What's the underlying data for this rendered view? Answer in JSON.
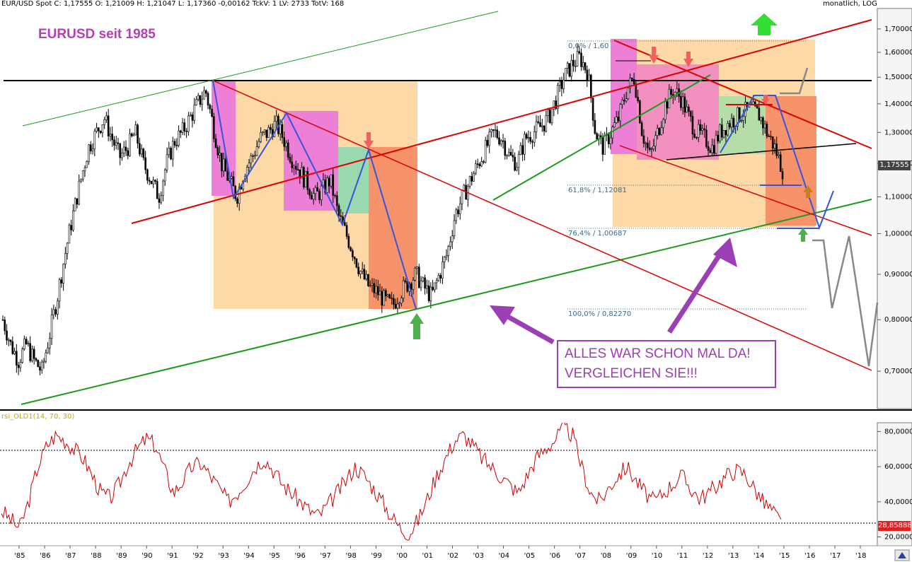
{
  "header": {
    "info": "EUR/USD Spot C: 1,17555 O: 1,21009 H: 1,21047 L: 1,17360 -0,00162 TckV: 1 LV: 2733 TotV: 168",
    "mode": "monatlich, LOG"
  },
  "chart_title": "EURUSD seit 1985",
  "annotation": {
    "line1": "ALLES WAR SCHON MAL DA!",
    "line2": "VERGLEICHEN SIE!!!"
  },
  "fib_labels": [
    "0,0% / 1,60",
    "61,8% / 1,12081",
    "76,4% / 1,00687",
    "100,0% / 0,82270"
  ],
  "current_price_label": "1,17555",
  "indicator": {
    "name": "rsi_OLD1(14, 70, 30)",
    "current_label": "28,85888"
  },
  "colors": {
    "candle": "#000000",
    "rsi": "#d00000",
    "trend_red": "#e00000",
    "trend_green": "#1a9a1a",
    "wave_blue": "#3355dd",
    "projection_gray": "#888888",
    "annotation_purple": "#9b3fb5"
  },
  "chart_data": [
    {
      "type": "line",
      "series": [
        {
          "values": [
            0.8,
            0.75,
            0.72,
            0.75,
            0.72,
            0.7,
            0.77,
            0.85,
            0.95,
            1.05,
            1.15,
            1.25,
            1.3,
            1.35,
            1.28,
            1.22,
            1.25,
            1.3,
            1.2,
            1.15,
            1.1,
            1.2,
            1.27,
            1.3,
            1.35,
            1.4,
            1.45,
            1.32,
            1.2,
            1.15,
            1.1,
            1.18,
            1.22,
            1.28,
            1.3,
            1.33,
            1.28,
            1.22,
            1.18,
            1.14,
            1.1,
            1.12,
            1.15,
            1.05,
            1.0,
            0.95,
            0.9,
            0.87,
            0.86,
            0.84,
            0.83,
            0.86,
            0.88,
            0.9,
            0.87,
            0.85,
            0.9,
            0.95,
            1.05,
            1.1,
            1.15,
            1.2,
            1.25,
            1.3,
            1.28,
            1.22,
            1.2,
            1.28,
            1.3,
            1.32,
            1.35,
            1.42,
            1.5,
            1.55,
            1.58,
            1.52,
            1.3,
            1.25,
            1.3,
            1.35,
            1.45,
            1.5,
            1.3,
            1.22,
            1.3,
            1.4,
            1.45,
            1.42,
            1.35,
            1.3,
            1.28,
            1.25,
            1.3,
            1.33,
            1.35,
            1.37,
            1.38,
            1.36,
            1.3,
            1.25,
            1.18
          ]
        }
      ],
      "ylim": [
        0.64,
        1.76
      ],
      "y_scale": "log",
      "x_ticks": [
        "'85",
        "'86",
        "'87",
        "'88",
        "'89",
        "'90",
        "'91",
        "'92",
        "'93",
        "'94",
        "'95",
        "'96",
        "'97",
        "'98",
        "'99",
        "'00",
        "'01",
        "'02",
        "'03",
        "'04",
        "'05",
        "'06",
        "'07",
        "'08",
        "'09",
        "'10",
        "'11",
        "'12",
        "'13",
        "'14",
        "'15",
        "'16",
        "'17",
        "'18"
      ],
      "y_ticks": [
        "1,70000",
        "1,60000",
        "1,50000",
        "1,40000",
        "1,30000",
        "1,20000",
        "1,10000",
        "1,00000",
        "0,90000",
        "0,80000",
        "0,70000"
      ]
    },
    {
      "type": "line",
      "series": [
        {
          "values": [
            35,
            30,
            25,
            40,
            60,
            72,
            78,
            75,
            70,
            65,
            55,
            45,
            42,
            50,
            62,
            70,
            76,
            72,
            58,
            45,
            52,
            60,
            62,
            55,
            48,
            40,
            45,
            52,
            60,
            65,
            58,
            50,
            45,
            40,
            35,
            32,
            38,
            45,
            52,
            60,
            55,
            48,
            40,
            32,
            25,
            22,
            30,
            42,
            55,
            65,
            75,
            78,
            72,
            65,
            60,
            55,
            50,
            45,
            55,
            65,
            70,
            75,
            82,
            78,
            60,
            45,
            40,
            48,
            55,
            60,
            52,
            45,
            40,
            45,
            50,
            55,
            48,
            42,
            45,
            50,
            55,
            58,
            56,
            48,
            40,
            35,
            28
          ]
        }
      ],
      "ylim": [
        15,
        85
      ],
      "y_ticks": [
        "80,00000",
        "60,00000",
        "40,00000",
        "20,00000"
      ],
      "reference_lines": [
        70,
        30
      ]
    }
  ]
}
